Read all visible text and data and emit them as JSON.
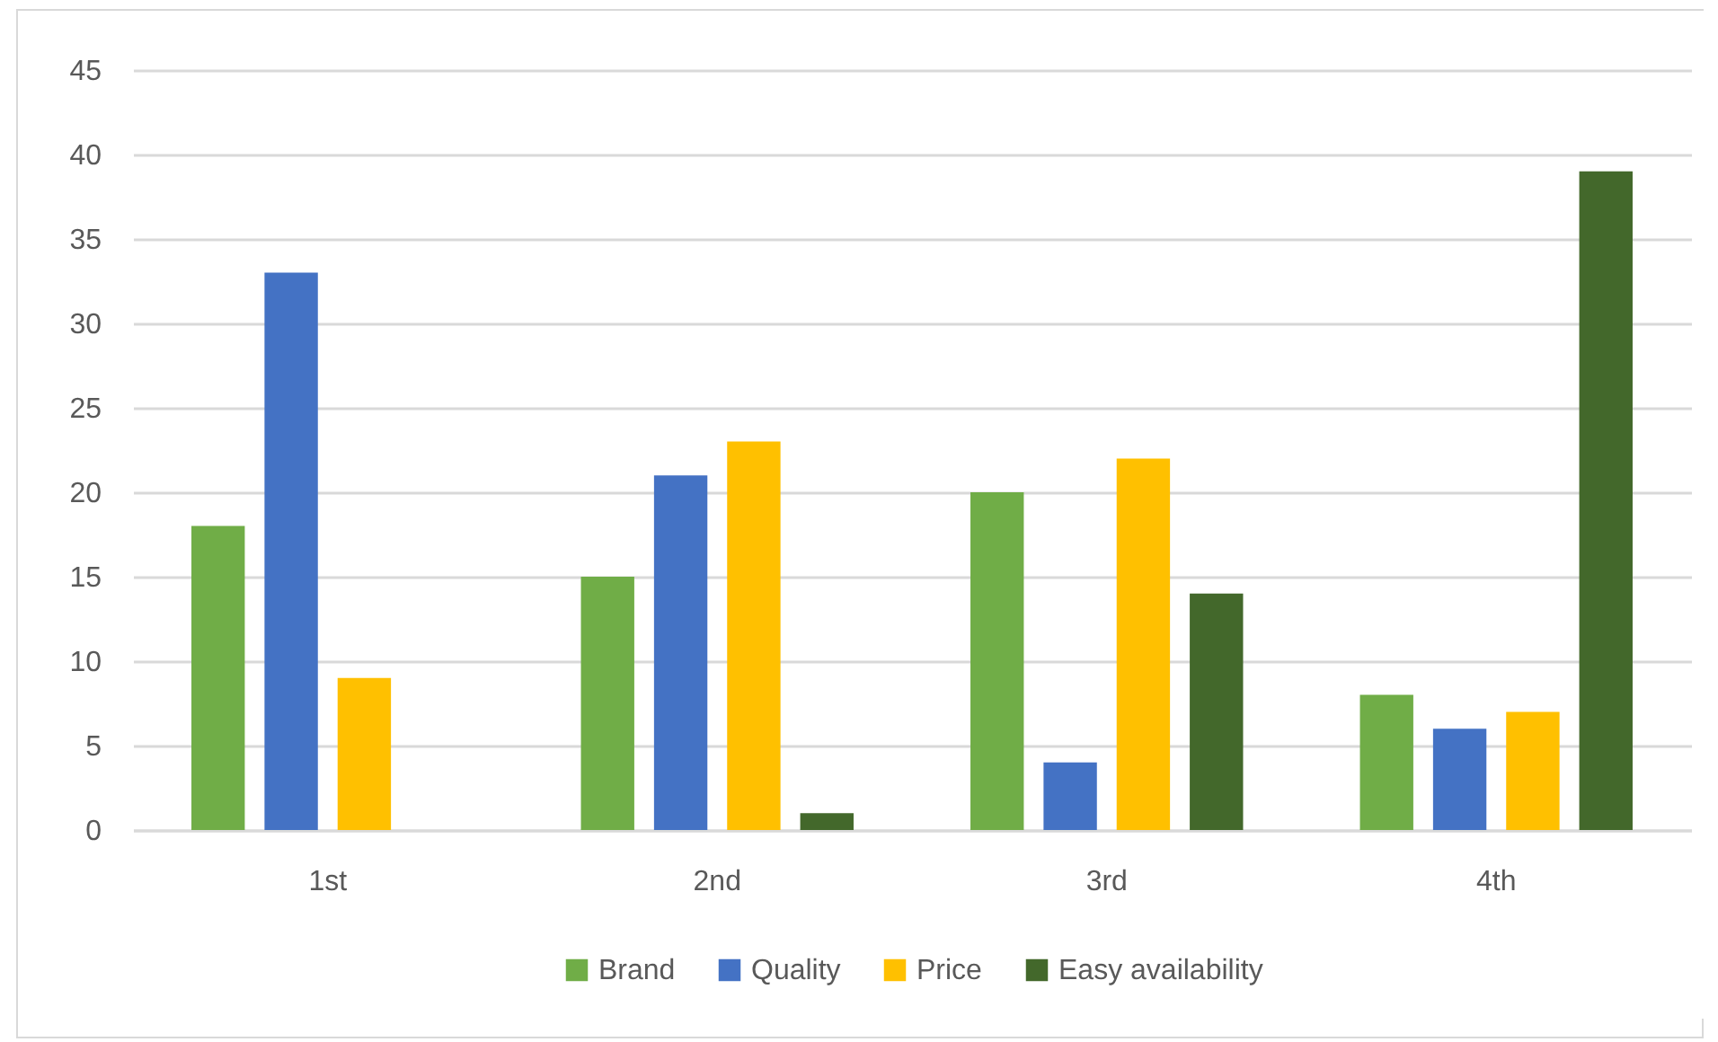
{
  "chart_data": {
    "type": "bar",
    "categories": [
      "1st",
      "2nd",
      "3rd",
      "4th"
    ],
    "series": [
      {
        "name": "Brand",
        "color": "#70ad47",
        "values": [
          18,
          15,
          20,
          8
        ]
      },
      {
        "name": "Quality",
        "color": "#4472c4",
        "values": [
          33,
          21,
          4,
          6
        ]
      },
      {
        "name": "Price",
        "color": "#ffc000",
        "values": [
          9,
          23,
          22,
          7
        ]
      },
      {
        "name": "Easy availability",
        "color": "#43682b",
        "values": [
          null,
          1,
          14,
          39
        ]
      }
    ],
    "ylim": [
      0,
      45
    ],
    "yticks": [
      0,
      5,
      10,
      15,
      20,
      25,
      30,
      35,
      40,
      45
    ],
    "grid": "y",
    "legend": "bottom"
  }
}
